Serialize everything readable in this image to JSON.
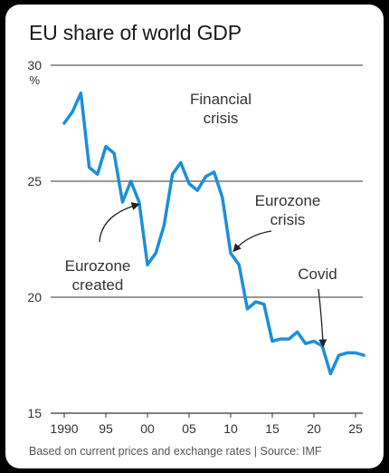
{
  "title": "EU share of world GDP",
  "footnote": "Based on current prices and exchange rates | Source: IMF",
  "colors": {
    "line": "#1a8fdc",
    "grid": "#333333",
    "arrow": "#222222",
    "background": "#ffffff"
  },
  "chart_data": {
    "type": "line",
    "title": "EU share of world GDP",
    "ylabel": "%",
    "xlabel": "",
    "ylim": [
      15,
      30
    ],
    "xlim": [
      1990,
      2026
    ],
    "yticks": [
      "30",
      "25",
      "20",
      "15"
    ],
    "xticks": [
      "1990",
      "95",
      "00",
      "05",
      "10",
      "15",
      "20",
      "25"
    ],
    "grid": "horizontal",
    "series": [
      {
        "x": [
          1990,
          1991,
          1992,
          1993,
          1994,
          1995,
          1996,
          1997,
          1998,
          1999,
          2000,
          2001,
          2002,
          2003,
          2004,
          2005,
          2006,
          2007,
          2008,
          2009,
          2010,
          2011,
          2012,
          2013,
          2014,
          2015,
          2016,
          2017,
          2018,
          2019,
          2020,
          2021,
          2022,
          2023,
          2024,
          2025,
          2026
        ],
        "values": [
          27.5,
          28.0,
          28.8,
          25.6,
          25.3,
          26.5,
          26.2,
          24.1,
          25.0,
          24.1,
          21.4,
          21.9,
          23.1,
          25.3,
          25.8,
          24.9,
          24.6,
          25.2,
          25.4,
          24.3,
          21.9,
          21.4,
          19.5,
          19.8,
          19.7,
          18.1,
          18.2,
          18.2,
          18.5,
          18.0,
          18.1,
          17.9,
          16.7,
          17.5,
          17.6,
          17.6,
          17.5
        ]
      }
    ],
    "annotations": [
      {
        "lines": [
          "Financial",
          "crisis"
        ],
        "x": 2008,
        "y": 25.4
      },
      {
        "lines": [
          "Eurozone",
          "crisis"
        ],
        "x": 2010.4,
        "y": 22.0
      },
      {
        "lines": [
          "Eurozone",
          "created"
        ],
        "x": 1998.9,
        "y": 24.0
      },
      {
        "lines": [
          "Covid"
        ],
        "x": 2021.1,
        "y": 17.9
      }
    ]
  }
}
